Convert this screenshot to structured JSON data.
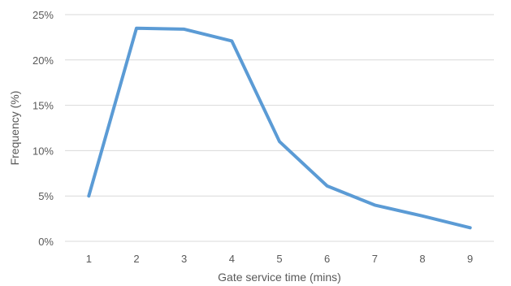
{
  "chart_data": {
    "type": "line",
    "title": "",
    "xlabel": "Gate service time (mins)",
    "ylabel": "Frequency (%)",
    "categories": [
      "1",
      "2",
      "3",
      "4",
      "5",
      "6",
      "7",
      "8",
      "9"
    ],
    "series": [
      {
        "values": [
          5.0,
          23.5,
          23.4,
          22.1,
          11.0,
          6.1,
          4.0,
          2.8,
          1.5
        ]
      }
    ],
    "ylim": [
      0,
      25
    ],
    "yticks": [
      0,
      5,
      10,
      15,
      20,
      25
    ],
    "ytick_labels": [
      "0%",
      "5%",
      "10%",
      "15%",
      "20%",
      "25%"
    ],
    "grid": true,
    "legend": "none",
    "colors": {
      "series": "#5b9bd5",
      "grid": "#d9d9d9",
      "text": "#595959"
    }
  }
}
